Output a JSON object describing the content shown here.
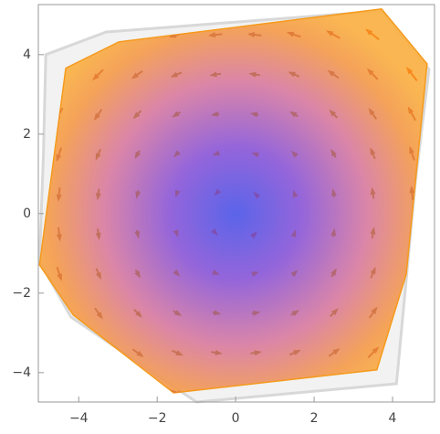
{
  "chart_data": {
    "type": "vector-density",
    "xlim": [
      -5.03,
      5.07
    ],
    "ylim": [
      -4.74,
      5.26
    ],
    "xticks": [
      {
        "value": -4,
        "label": "−4"
      },
      {
        "value": -2,
        "label": "−2"
      },
      0,
      2,
      4
    ],
    "yticks": [
      {
        "value": -4,
        "label": "−4"
      },
      {
        "value": -2,
        "label": "−2"
      },
      0,
      2,
      4
    ],
    "outline": [
      [
        -4.84,
        4.0
      ],
      [
        -3.3,
        4.57
      ],
      [
        3.72,
        5.1
      ],
      [
        4.93,
        3.63
      ],
      [
        4.58,
        0.78
      ],
      [
        4.1,
        -4.28
      ],
      [
        -1.0,
        -4.74
      ],
      [
        -4.2,
        -2.6
      ],
      [
        -5.0,
        -1.2
      ],
      [
        -4.9,
        1.5
      ]
    ],
    "region": [
      [
        -2.98,
        4.32
      ],
      [
        3.72,
        5.15
      ],
      [
        4.88,
        3.77
      ],
      [
        4.35,
        -1.52
      ],
      [
        3.6,
        -3.93
      ],
      [
        -1.58,
        -4.51
      ],
      [
        -4.14,
        -2.55
      ],
      [
        -5.0,
        -1.29
      ],
      [
        -4.33,
        3.66
      ]
    ],
    "x": [
      -4.5,
      -3.5,
      -2.5,
      -1.5,
      -0.5,
      0.5,
      1.5,
      2.5,
      3.5,
      4.5
    ],
    "y": [
      4.5,
      3.5,
      2.5,
      1.5,
      0.5,
      -0.5,
      -1.5,
      -2.5,
      -3.5,
      -4.5
    ],
    "u": [
      [
        -4.5,
        -4.5,
        -4.5,
        -4.5,
        -4.5,
        -4.5,
        -4.5,
        -4.5,
        -4.5,
        -4.5
      ],
      [
        -3.5,
        -3.5,
        -3.5,
        -3.5,
        -3.5,
        -3.5,
        -3.5,
        -3.5,
        -3.5,
        -3.5
      ],
      [
        -2.5,
        -2.5,
        -2.5,
        -2.5,
        -2.5,
        -2.5,
        -2.5,
        -2.5,
        -2.5,
        -2.5
      ],
      [
        -1.5,
        -1.5,
        -1.5,
        -1.5,
        -1.5,
        -1.5,
        -1.5,
        -1.5,
        -1.5,
        -1.5
      ],
      [
        -0.5,
        -0.5,
        -0.5,
        -0.5,
        -0.5,
        -0.5,
        -0.5,
        -0.5,
        -0.5,
        -0.5
      ],
      [
        0.5,
        0.5,
        0.5,
        0.5,
        0.5,
        0.5,
        0.5,
        0.5,
        0.5,
        0.5
      ],
      [
        1.5,
        1.5,
        1.5,
        1.5,
        1.5,
        1.5,
        1.5,
        1.5,
        1.5,
        1.5
      ],
      [
        2.5,
        2.5,
        2.5,
        2.5,
        2.5,
        2.5,
        2.5,
        2.5,
        2.5,
        2.5
      ],
      [
        3.5,
        3.5,
        3.5,
        3.5,
        3.5,
        3.5,
        3.5,
        3.5,
        3.5,
        3.5
      ],
      [
        4.5,
        4.5,
        4.5,
        4.5,
        4.5,
        4.5,
        4.5,
        4.5,
        4.5,
        4.5
      ]
    ],
    "v": [
      [
        -4.5,
        -3.5,
        -2.5,
        -1.5,
        -0.5,
        0.5,
        1.5,
        2.5,
        3.5,
        4.5
      ],
      [
        -4.5,
        -3.5,
        -2.5,
        -1.5,
        -0.5,
        0.5,
        1.5,
        2.5,
        3.5,
        4.5
      ],
      [
        -4.5,
        -3.5,
        -2.5,
        -1.5,
        -0.5,
        0.5,
        1.5,
        2.5,
        3.5,
        4.5
      ],
      [
        -4.5,
        -3.5,
        -2.5,
        -1.5,
        -0.5,
        0.5,
        1.5,
        2.5,
        3.5,
        4.5
      ],
      [
        -4.5,
        -3.5,
        -2.5,
        -1.5,
        -0.5,
        0.5,
        1.5,
        2.5,
        3.5,
        4.5
      ],
      [
        -4.5,
        -3.5,
        -2.5,
        -1.5,
        -0.5,
        0.5,
        1.5,
        2.5,
        3.5,
        4.5
      ],
      [
        -4.5,
        -3.5,
        -2.5,
        -1.5,
        -0.5,
        0.5,
        1.5,
        2.5,
        3.5,
        4.5
      ],
      [
        -4.5,
        -3.5,
        -2.5,
        -1.5,
        -0.5,
        0.5,
        1.5,
        2.5,
        3.5,
        4.5
      ],
      [
        -4.5,
        -3.5,
        -2.5,
        -1.5,
        -0.5,
        0.5,
        1.5,
        2.5,
        3.5,
        4.5
      ],
      [
        -4.5,
        -3.5,
        -2.5,
        -1.5,
        -0.5,
        0.5,
        1.5,
        2.5,
        3.5,
        4.5
      ]
    ]
  }
}
